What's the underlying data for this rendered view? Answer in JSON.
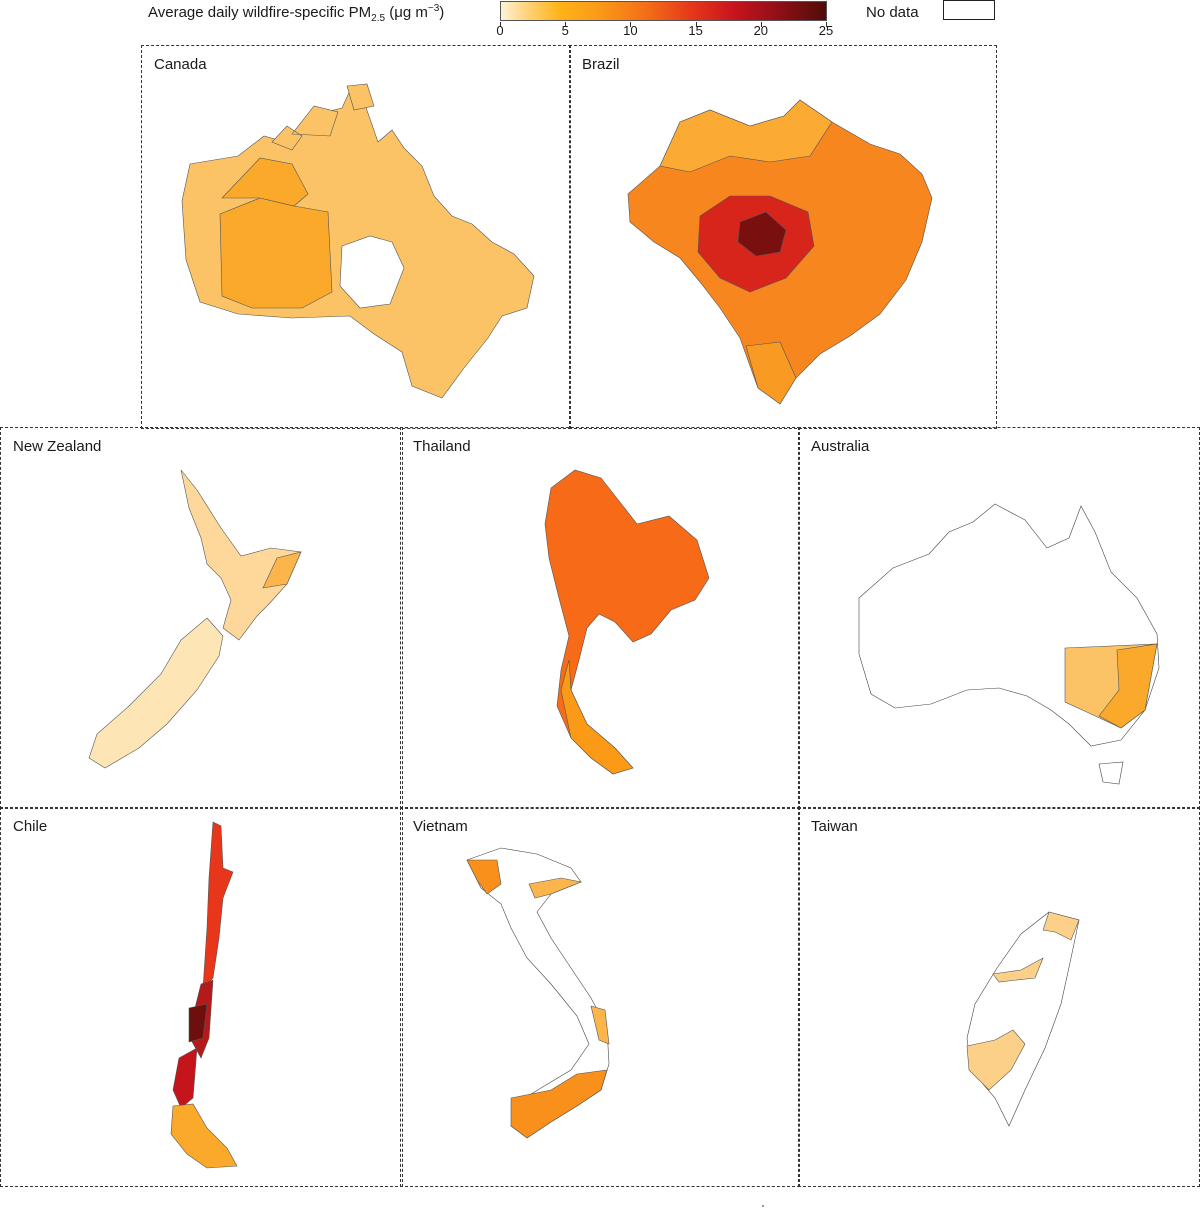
{
  "legend": {
    "title_main": "Average daily wildfire-specific PM",
    "title_sub": "2.5",
    "title_unit_prefix": " (μg m",
    "title_unit_sup": "−3",
    "title_unit_suffix": ")",
    "ticks": [
      "0",
      "5",
      "10",
      "15",
      "20",
      "25"
    ],
    "no_data_label": "No data",
    "range": [
      0,
      25
    ],
    "colors": [
      "#fff3d6",
      "#ffd37a",
      "#ffb319",
      "#f46d18",
      "#c6141d",
      "#4f0d08"
    ]
  },
  "panels": [
    {
      "name": "Canada",
      "fill": "#fcc366",
      "accent": "#fba92a"
    },
    {
      "name": "Brazil",
      "fill": "#f7861e",
      "accent": "#c2121c"
    },
    {
      "name": "New Zealand",
      "fill": "#fde1aa",
      "accent": "#fcc76e"
    },
    {
      "name": "Thailand",
      "fill": "#f66a18",
      "accent": "#fb9a17"
    },
    {
      "name": "Australia",
      "fill": "#ffffff",
      "accent": "#fbb53a"
    },
    {
      "name": "Chile",
      "fill": "#e8361b",
      "accent": "#6d0f0c"
    },
    {
      "name": "Vietnam",
      "fill": "#ffffff",
      "accent": "#f9901c"
    },
    {
      "name": "Taiwan",
      "fill": "#ffffff",
      "accent": "#fdd08a"
    }
  ]
}
